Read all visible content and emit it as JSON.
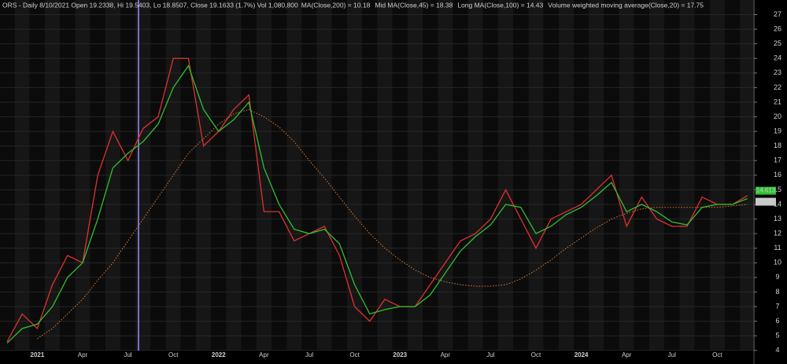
{
  "chart_data": {
    "type": "line",
    "title": "ORS - Daily 8/10/2021 Open 19.2338, Hi 19.5403, Lo 18.8507, Close 19.1633 (1.7%) Vol 1,080,800",
    "indicators": [
      {
        "text": "MA(Close,200) = 10.18",
        "color": "#e07a2e"
      },
      {
        "text": "Mid MA(Close,45) = 18.38",
        "color": "#3050ff"
      },
      {
        "text": "Long MA(Close,100) = 14.43",
        "color": "#30d030"
      },
      {
        "text": "Volume weighted moving average(Close,20) = 17.75",
        "color": "#30d030"
      }
    ],
    "categories": [
      null,
      null,
      "2021",
      null,
      null,
      "Apr",
      null,
      null,
      "Jul",
      null,
      null,
      "Oct",
      null,
      null,
      "2022",
      null,
      null,
      "Apr",
      null,
      null,
      "Jul",
      null,
      null,
      "Oct",
      null,
      null,
      "2023",
      null,
      null,
      "Apr",
      null,
      null,
      "Jul",
      null,
      null,
      "Oct",
      null,
      null,
      "2024",
      null,
      null,
      "Apr",
      null,
      null,
      "Jul",
      null,
      null,
      "Oct",
      null,
      null
    ],
    "series": [
      {
        "color": "#e03030",
        "values": [
          4.6,
          6.5,
          5.5,
          8.5,
          10.5,
          10,
          16,
          19,
          17,
          19.2,
          20,
          24,
          24,
          18,
          19,
          20.5,
          21.5,
          13.5,
          13.5,
          11.5,
          12,
          12.5,
          10.5,
          7,
          6,
          7.5,
          7,
          7,
          8.5,
          10,
          11.5,
          12,
          13,
          15,
          13,
          11,
          13,
          13.5,
          14,
          15,
          16,
          12.5,
          14.5,
          13,
          12.5,
          12.5,
          14.5,
          14,
          14,
          14.6
        ]
      },
      {
        "color": "#30c030",
        "values": [
          4.5,
          5.5,
          5.8,
          7,
          9,
          10,
          13,
          16.5,
          17.5,
          18.3,
          19.5,
          22,
          23.5,
          20.5,
          19,
          19.8,
          21,
          16.5,
          14,
          12.3,
          12,
          12.3,
          11.3,
          8.5,
          6.5,
          6.8,
          7,
          7,
          7.8,
          9.3,
          10.8,
          11.8,
          12.6,
          14,
          13.8,
          12,
          12.5,
          13.3,
          13.8,
          14.6,
          15.5,
          13.5,
          14,
          13.5,
          12.8,
          12.6,
          13.8,
          14,
          14,
          14.4
        ]
      },
      {
        "color": "#e07a2e",
        "dash": true,
        "values": [
          null,
          null,
          4.8,
          5.5,
          6.5,
          7.5,
          8.8,
          10,
          11.5,
          13,
          14.5,
          16,
          17.5,
          18.5,
          19.5,
          20.2,
          20.5,
          20,
          19.3,
          18.3,
          17,
          15.8,
          14.5,
          13.2,
          12,
          11,
          10.2,
          9.5,
          9,
          8.7,
          8.5,
          8.4,
          8.4,
          8.5,
          8.9,
          9.5,
          10.2,
          11,
          11.7,
          12.4,
          13,
          13.4,
          13.7,
          13.8,
          13.8,
          13.8,
          13.8,
          13.8,
          13.9,
          14
        ]
      }
    ],
    "ylim": [
      3.5,
      28
    ],
    "yticks": [
      4,
      5,
      6,
      7,
      8,
      9,
      10,
      11,
      12,
      13,
      14,
      15,
      16,
      17,
      18,
      19,
      20,
      21,
      22,
      23,
      24,
      25,
      26,
      27
    ],
    "last_labels": [
      {
        "value": 14.613,
        "color": "#30c030"
      },
      {
        "value": 14.4,
        "color": "#c8c8c8"
      }
    ],
    "grid": true
  }
}
